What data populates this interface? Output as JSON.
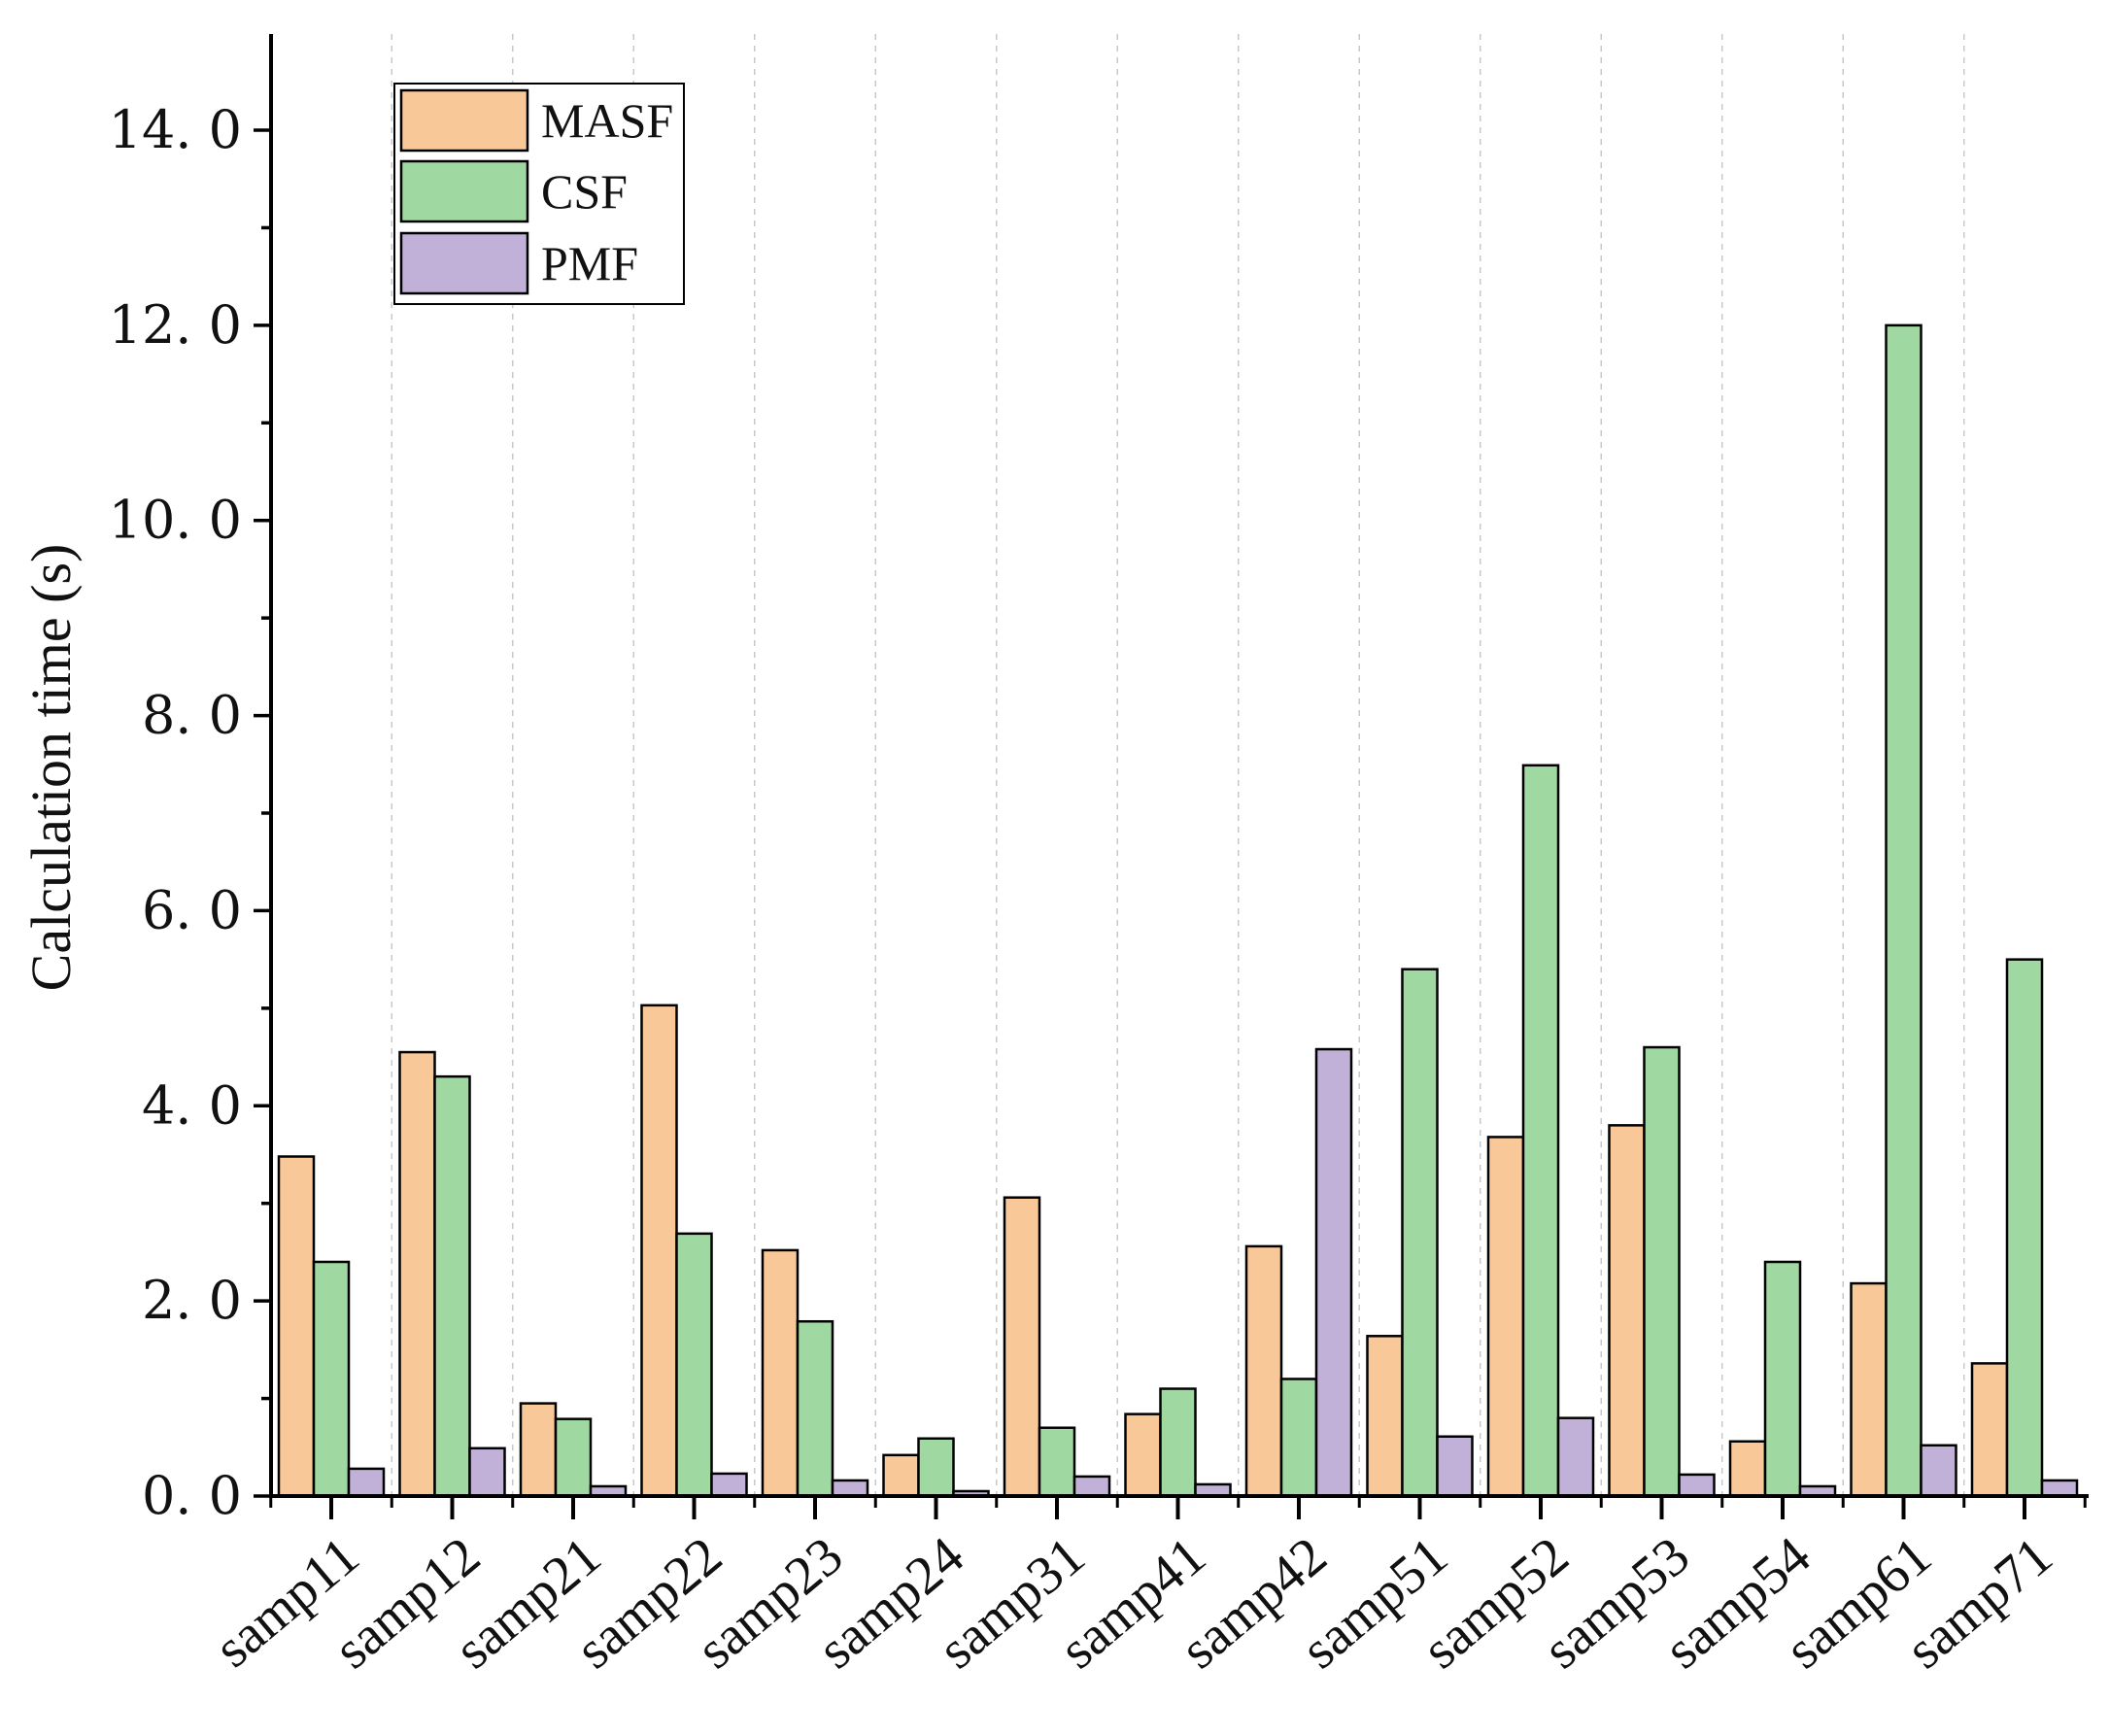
{
  "chart_data": {
    "type": "bar",
    "title": "",
    "xlabel": "",
    "ylabel": "Calculation time (s)",
    "ylim": [
      0,
      15
    ],
    "yticks": [
      0,
      2,
      4,
      6,
      8,
      10,
      12,
      14
    ],
    "ytick_labels": [
      "0. 0",
      "2. 0",
      "4. 0",
      "6. 0",
      "8. 0",
      "10. 0",
      "12. 0",
      "14. 0"
    ],
    "grid": "vertical dashed",
    "legend_position": "top-left",
    "categories": [
      "samp11",
      "samp12",
      "samp21",
      "samp22",
      "samp23",
      "samp24",
      "samp31",
      "samp41",
      "samp42",
      "samp51",
      "samp52",
      "samp53",
      "samp54",
      "samp61",
      "samp71"
    ],
    "series": [
      {
        "name": "MASF",
        "color": "#f9c898",
        "values": [
          3.48,
          4.55,
          0.95,
          5.03,
          2.52,
          0.42,
          3.06,
          0.84,
          2.56,
          1.64,
          3.68,
          3.8,
          0.56,
          2.18,
          1.36
        ]
      },
      {
        "name": "CSF",
        "color": "#9fd8a0",
        "values": [
          2.4,
          4.3,
          0.79,
          2.69,
          1.79,
          0.59,
          0.7,
          1.1,
          1.2,
          5.4,
          7.49,
          4.6,
          2.4,
          12.0,
          5.5
        ]
      },
      {
        "name": "PMF",
        "color": "#c1b0d8",
        "values": [
          0.28,
          0.49,
          0.1,
          0.23,
          0.16,
          0.05,
          0.2,
          0.12,
          4.58,
          0.61,
          0.8,
          0.22,
          0.1,
          0.52,
          0.16
        ]
      }
    ]
  }
}
